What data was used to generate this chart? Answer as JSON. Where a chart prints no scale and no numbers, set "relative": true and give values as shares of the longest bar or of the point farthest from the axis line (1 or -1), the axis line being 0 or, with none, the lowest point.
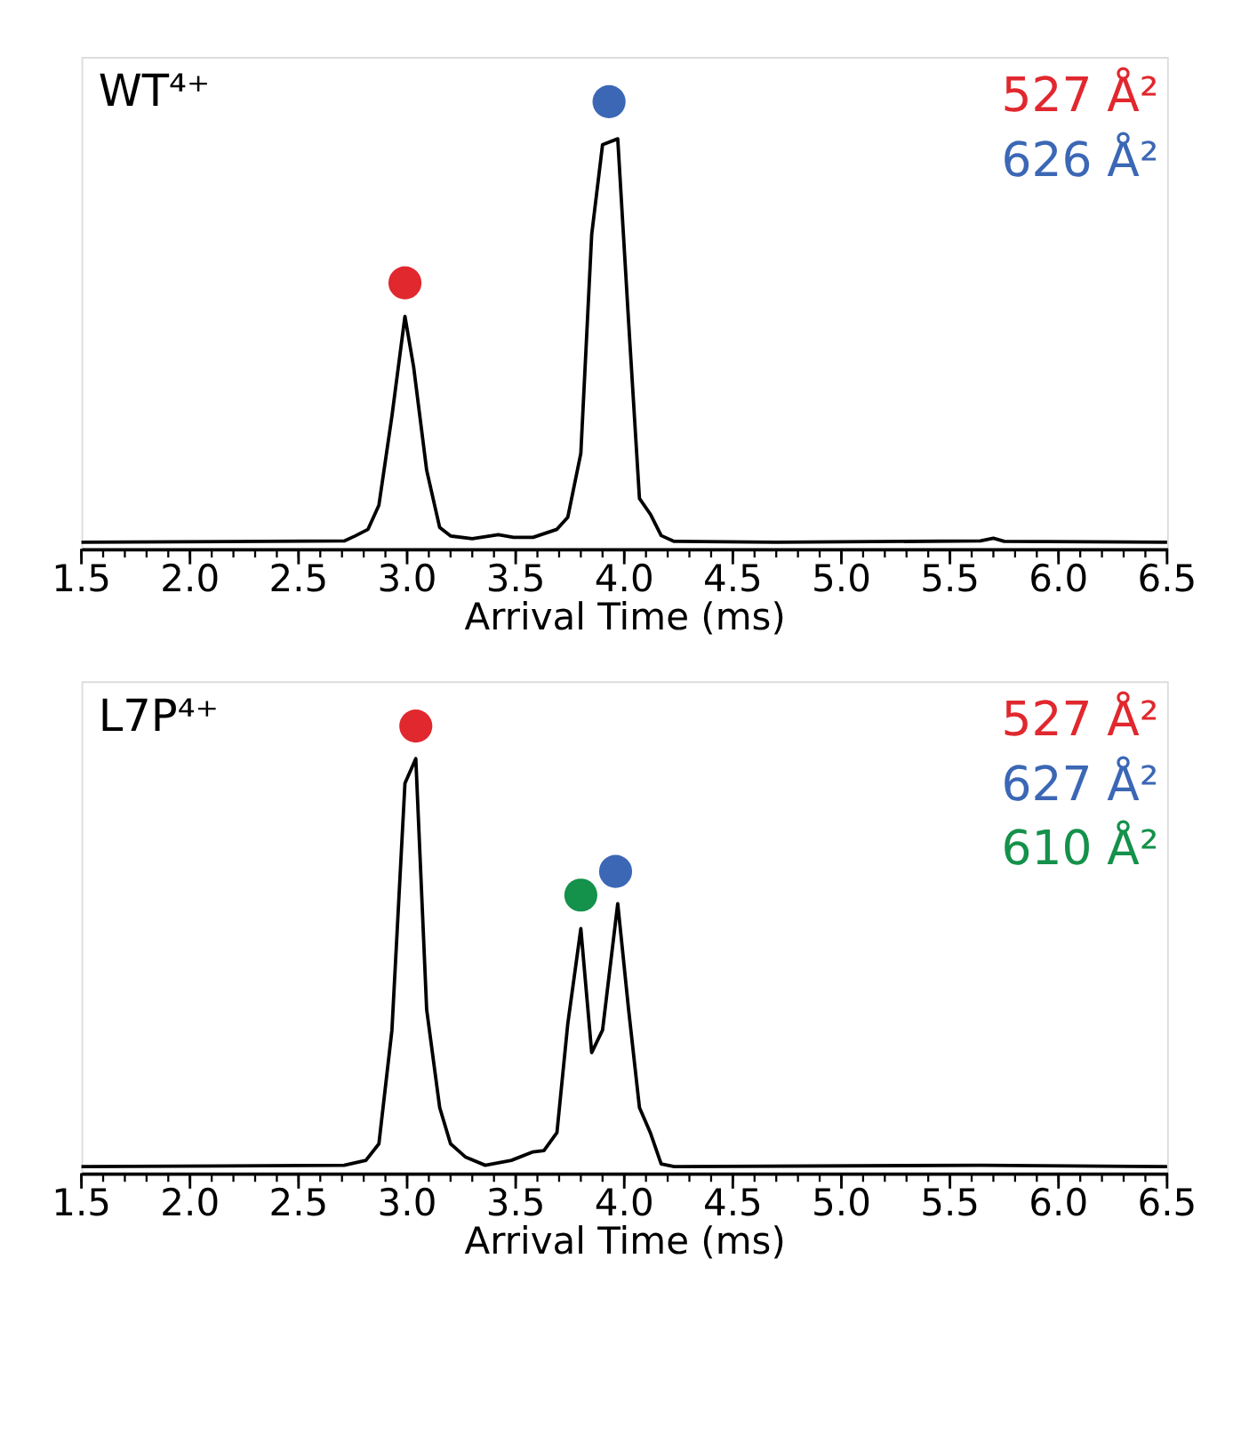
{
  "chart_data": [
    {
      "type": "line",
      "title": "WT⁴⁺",
      "xlabel": "Arrival Time (ms)",
      "relative": true,
      "legend": "top right",
      "grid": false,
      "marker": "none",
      "line_style": "solid",
      "xlim": [
        1.5,
        6.5
      ],
      "xticks": [
        1.5,
        {
          "value": 1.6,
          "label": null
        },
        {
          "value": 1.7,
          "label": null
        },
        {
          "value": 1.8,
          "label": null
        },
        {
          "value": 1.9,
          "label": null
        },
        {
          "value": 2.0,
          "label": "2.0"
        },
        {
          "value": 2.1,
          "label": null
        },
        {
          "value": 2.2,
          "label": null
        },
        {
          "value": 2.3,
          "label": null
        },
        {
          "value": 2.4,
          "label": null
        },
        2.5,
        {
          "value": 2.6,
          "label": null
        },
        {
          "value": 2.7,
          "label": null
        },
        {
          "value": 2.8,
          "label": null
        },
        {
          "value": 2.9,
          "label": null
        },
        {
          "value": 3.0,
          "label": "3.0"
        },
        {
          "value": 3.1,
          "label": null
        },
        {
          "value": 3.2,
          "label": null
        },
        {
          "value": 3.3,
          "label": null
        },
        {
          "value": 3.4,
          "label": null
        },
        3.5,
        {
          "value": 3.6,
          "label": null
        },
        {
          "value": 3.7,
          "label": null
        },
        {
          "value": 3.8,
          "label": null
        },
        {
          "value": 3.9,
          "label": null
        },
        {
          "value": 4.0,
          "label": "4.0"
        },
        {
          "value": 4.1,
          "label": null
        },
        {
          "value": 4.2,
          "label": null
        },
        {
          "value": 4.3,
          "label": null
        },
        {
          "value": 4.4,
          "label": null
        },
        4.5,
        {
          "value": 4.6,
          "label": null
        },
        {
          "value": 4.7,
          "label": null
        },
        {
          "value": 4.8,
          "label": null
        },
        {
          "value": 4.9,
          "label": null
        },
        {
          "value": 5.0,
          "label": "5.0"
        },
        {
          "value": 5.1,
          "label": null
        },
        {
          "value": 5.2,
          "label": null
        },
        {
          "value": 5.3,
          "label": null
        },
        {
          "value": 5.4,
          "label": null
        },
        5.5,
        {
          "value": 5.6,
          "label": null
        },
        {
          "value": 5.7,
          "label": null
        },
        {
          "value": 5.8,
          "label": null
        },
        {
          "value": 5.9,
          "label": null
        },
        {
          "value": 6.0,
          "label": "6.0"
        },
        {
          "value": 6.1,
          "label": null
        },
        {
          "value": 6.2,
          "label": null
        },
        {
          "value": 6.3,
          "label": null
        },
        {
          "value": 6.4,
          "label": null
        },
        6.5
      ],
      "series": [
        {
          "color": "#000000",
          "x": [
            1.5,
            2.71,
            2.76,
            2.82,
            2.87,
            2.93,
            2.99,
            3.03,
            3.09,
            3.15,
            3.2,
            3.3,
            3.42,
            3.49,
            3.58,
            3.69,
            3.74,
            3.8,
            3.85,
            3.9,
            3.97,
            4.02,
            4.07,
            4.12,
            4.17,
            4.23,
            4.7,
            5.64,
            5.7,
            5.75,
            6.5
          ],
          "values": [
            0.015,
            0.018,
            0.029,
            0.044,
            0.098,
            0.297,
            0.52,
            0.407,
            0.176,
            0.048,
            0.029,
            0.023,
            0.032,
            0.026,
            0.026,
            0.044,
            0.071,
            0.214,
            0.703,
            0.904,
            0.917,
            0.508,
            0.113,
            0.078,
            0.03,
            0.017,
            0.015,
            0.018,
            0.024,
            0.017,
            0.015
          ]
        },
        {
          "type": "scatter",
          "name": "527 Å²",
          "color": "#e0282e",
          "marker": "circle",
          "x": [
            2.99
          ],
          "values": [
            0.595
          ]
        },
        {
          "type": "scatter",
          "name": "626 Å²",
          "color": "#3b67b5",
          "marker": "circle",
          "x": [
            3.93
          ],
          "values": [
            1.0
          ]
        }
      ]
    },
    {
      "type": "line",
      "title": "L7P⁴⁺",
      "xlabel": "Arrival Time (ms)",
      "relative": true,
      "legend": "top right",
      "grid": false,
      "marker": "none",
      "line_style": "solid",
      "xlim": [
        1.5,
        6.5
      ],
      "xticks": [
        1.5,
        {
          "value": 1.6,
          "label": null
        },
        {
          "value": 1.7,
          "label": null
        },
        {
          "value": 1.8,
          "label": null
        },
        {
          "value": 1.9,
          "label": null
        },
        {
          "value": 2.0,
          "label": "2.0"
        },
        {
          "value": 2.1,
          "label": null
        },
        {
          "value": 2.2,
          "label": null
        },
        {
          "value": 2.3,
          "label": null
        },
        {
          "value": 2.4,
          "label": null
        },
        2.5,
        {
          "value": 2.6,
          "label": null
        },
        {
          "value": 2.7,
          "label": null
        },
        {
          "value": 2.8,
          "label": null
        },
        {
          "value": 2.9,
          "label": null
        },
        {
          "value": 3.0,
          "label": "3.0"
        },
        {
          "value": 3.1,
          "label": null
        },
        {
          "value": 3.2,
          "label": null
        },
        {
          "value": 3.3,
          "label": null
        },
        {
          "value": 3.4,
          "label": null
        },
        3.5,
        {
          "value": 3.6,
          "label": null
        },
        {
          "value": 3.7,
          "label": null
        },
        {
          "value": 3.8,
          "label": null
        },
        {
          "value": 3.9,
          "label": null
        },
        {
          "value": 4.0,
          "label": "4.0"
        },
        {
          "value": 4.1,
          "label": null
        },
        {
          "value": 4.2,
          "label": null
        },
        {
          "value": 4.3,
          "label": null
        },
        {
          "value": 4.4,
          "label": null
        },
        4.5,
        {
          "value": 4.6,
          "label": null
        },
        {
          "value": 4.7,
          "label": null
        },
        {
          "value": 4.8,
          "label": null
        },
        {
          "value": 4.9,
          "label": null
        },
        {
          "value": 5.0,
          "label": "5.0"
        },
        {
          "value": 5.1,
          "label": null
        },
        {
          "value": 5.2,
          "label": null
        },
        {
          "value": 5.3,
          "label": null
        },
        {
          "value": 5.4,
          "label": null
        },
        5.5,
        {
          "value": 5.6,
          "label": null
        },
        {
          "value": 5.7,
          "label": null
        },
        {
          "value": 5.8,
          "label": null
        },
        {
          "value": 5.9,
          "label": null
        },
        {
          "value": 6.0,
          "label": "6.0"
        },
        {
          "value": 6.1,
          "label": null
        },
        {
          "value": 6.2,
          "label": null
        },
        {
          "value": 6.3,
          "label": null
        },
        {
          "value": 6.4,
          "label": null
        },
        6.5
      ],
      "series": [
        {
          "color": "#000000",
          "x": [
            1.5,
            2.71,
            2.81,
            2.87,
            2.93,
            2.99,
            3.04,
            3.09,
            3.15,
            3.2,
            3.27,
            3.36,
            3.48,
            3.58,
            3.63,
            3.69,
            3.74,
            3.8,
            3.85,
            3.9,
            3.97,
            4.02,
            4.07,
            4.12,
            4.17,
            4.23,
            5.64,
            6.5
          ],
          "values": [
            0.015,
            0.018,
            0.029,
            0.066,
            0.32,
            0.872,
            0.927,
            0.366,
            0.147,
            0.066,
            0.036,
            0.018,
            0.029,
            0.048,
            0.051,
            0.091,
            0.335,
            0.547,
            0.27,
            0.32,
            0.603,
            0.366,
            0.147,
            0.091,
            0.021,
            0.015,
            0.018,
            0.015
          ]
        },
        {
          "type": "scatter",
          "name": "527 Å²",
          "color": "#e0282e",
          "marker": "circle",
          "x": [
            3.04
          ],
          "values": [
            1.0
          ]
        },
        {
          "type": "scatter",
          "name": "627 Å²",
          "color": "#3b67b5",
          "marker": "circle",
          "x": [
            3.96
          ],
          "values": [
            0.675
          ]
        },
        {
          "type": "scatter",
          "name": "610 Å²",
          "color": "#14914a",
          "marker": "circle",
          "x": [
            3.8
          ],
          "values": [
            0.622
          ]
        }
      ]
    }
  ]
}
